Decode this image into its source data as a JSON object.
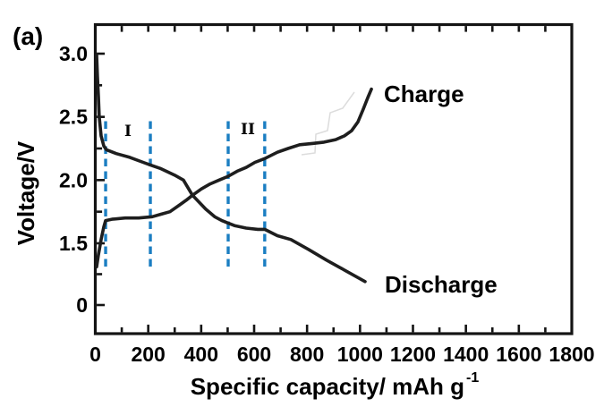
{
  "figure": {
    "panel_label": "(a)",
    "ylabel": "Voltage/V",
    "xlabel_main": "Specific capacity/ mAh g",
    "xlabel_sup": "-1",
    "charge_label": "Charge",
    "discharge_label": "Discharge",
    "region_labels": [
      "I",
      "II"
    ]
  },
  "chart_data": {
    "type": "line",
    "title": "",
    "xlabel": "Specific capacity / mAh g^-1",
    "ylabel": "Voltage / V",
    "xlim": [
      0,
      1800
    ],
    "ylim": [
      0,
      3.25
    ],
    "grid": false,
    "legend_position": "inline-annotations",
    "x_major_ticks": [
      0,
      200,
      400,
      600,
      800,
      1000,
      1200,
      1400,
      1600,
      1800
    ],
    "x_major_labels": [
      "0",
      "200",
      "400",
      "600",
      "800",
      "1000",
      "1200",
      "1400",
      "1600",
      "1800"
    ],
    "x_minor_ticks": [
      100,
      300,
      500,
      700,
      900,
      1100,
      1300,
      1500,
      1700
    ],
    "y_major_ticks": [
      3.0,
      2.5,
      2.0,
      1.5,
      0
    ],
    "y_major_labels": [
      "3.0",
      "2.5",
      "2.0",
      "1.5",
      "0"
    ],
    "y_minor_ticks": [
      2.75,
      2.25,
      1.75,
      0.75
    ],
    "region_guides_x": [
      39,
      208,
      502,
      640
    ],
    "series": [
      {
        "name": "Charge",
        "x": [
          5,
          12,
          22,
          32,
          39,
          63,
          113,
          164,
          215,
          248,
          282,
          316,
          343,
          367,
          401,
          434,
          468,
          502,
          536,
          570,
          603,
          640,
          688,
          728,
          772,
          823,
          864,
          908,
          941,
          968,
          992,
          1012,
          1029,
          1043
        ],
        "v": [
          0.93,
          1.22,
          1.53,
          1.63,
          1.68,
          1.69,
          1.7,
          1.7,
          1.71,
          1.73,
          1.75,
          1.8,
          1.84,
          1.88,
          1.93,
          1.97,
          2.0,
          2.03,
          2.07,
          2.1,
          2.14,
          2.17,
          2.22,
          2.25,
          2.28,
          2.29,
          2.3,
          2.32,
          2.35,
          2.39,
          2.46,
          2.56,
          2.65,
          2.72
        ]
      },
      {
        "name": "Discharge",
        "x": [
          5,
          8,
          12,
          15,
          22,
          32,
          42,
          79,
          130,
          181,
          208,
          248,
          299,
          333,
          367,
          390,
          417,
          451,
          478,
          502,
          526,
          570,
          614,
          640,
          688,
          739,
          806,
          874,
          941,
          1019
        ],
        "v": [
          2.99,
          2.82,
          2.66,
          2.5,
          2.35,
          2.27,
          2.24,
          2.21,
          2.18,
          2.14,
          2.12,
          2.09,
          2.04,
          2.0,
          1.88,
          1.83,
          1.77,
          1.71,
          1.68,
          1.66,
          1.64,
          1.62,
          1.61,
          1.61,
          1.56,
          1.53,
          1.35,
          1.09,
          0.85,
          0.57
        ]
      }
    ]
  },
  "colors": {
    "curve": "#1e1e1e",
    "guide": "#1b7ec2",
    "axis": "#141414",
    "text": "#000000",
    "ghost": "#dcdcdc"
  }
}
